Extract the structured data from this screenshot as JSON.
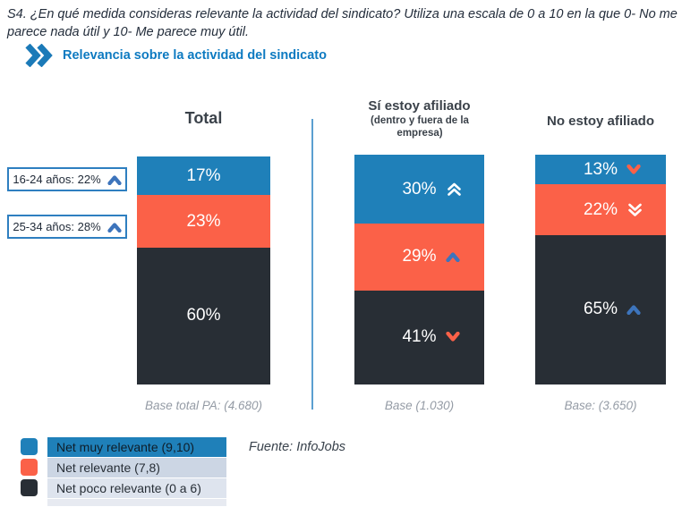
{
  "question": "S4. ¿En qué medida consideras relevante la actividad del sindicato? Utiliza una escala de 0 a 10 en la que 0- No me parece nada útil y 10- Me parece muy útil.",
  "subtitle": "Relevancia sobre la actividad del sindicato",
  "callouts": [
    {
      "label": "16-24 años: 22%",
      "arrow": "up-blue"
    },
    {
      "label": "25-34 años: 28%",
      "arrow": "up-blue"
    }
  ],
  "columns": [
    {
      "title": "Total",
      "subtitle": "",
      "base": "Base total PA: (4.680)",
      "segments": [
        {
          "label": "17%",
          "value": 17,
          "arrow": null
        },
        {
          "label": "23%",
          "value": 23,
          "arrow": null
        },
        {
          "label": "60%",
          "value": 60,
          "arrow": null
        }
      ]
    },
    {
      "title": "Sí estoy afiliado",
      "subtitle": "(dentro y fuera de la empresa)",
      "base": "Base (1.030)",
      "segments": [
        {
          "label": "30%",
          "value": 30,
          "arrow": "double-up-white"
        },
        {
          "label": "29%",
          "value": 29,
          "arrow": "up-blue"
        },
        {
          "label": "41%",
          "value": 41,
          "arrow": "down-orange"
        }
      ]
    },
    {
      "title": "No estoy afiliado",
      "subtitle": "",
      "base": "Base: (3.650)",
      "segments": [
        {
          "label": "13%",
          "value": 13,
          "arrow": "down-orange"
        },
        {
          "label": "22%",
          "value": 22,
          "arrow": "double-down-white"
        },
        {
          "label": "65%",
          "value": 65,
          "arrow": "up-blue"
        }
      ]
    }
  ],
  "legend": [
    {
      "label": "Net muy relevante (9,10)",
      "color": "#1f80b9"
    },
    {
      "label": "Net relevante (7,8)",
      "color": "#fb6148"
    },
    {
      "label": "Net poco relevante (0 a 6)",
      "color": "#282e35"
    }
  ],
  "fuente": "Fuente: InfoJobs",
  "colors": {
    "accent_blue": "#1b7ab8",
    "subtitle_blue": "#0d7ac1",
    "arrow_blue": "#3d74bc",
    "arrow_orange": "#fb6148",
    "arrow_white": "#ffffff",
    "divider": "#5b9fd0",
    "callout_border": "#2e7fc0",
    "legend_row1_bg": "#1f80b9",
    "legend_row2_bg": "#ccd6e4",
    "legend_row3_bg": "#dee4ee"
  },
  "chart_data": {
    "type": "bar",
    "stacked": true,
    "unit": "percent",
    "title": "Relevancia sobre la actividad del sindicato",
    "categories": [
      "Total",
      "Sí estoy afiliado (dentro y fuera de la empresa)",
      "No estoy afiliado"
    ],
    "series": [
      {
        "name": "Net muy relevante (9,10)",
        "color": "#1f80b9",
        "values": [
          17,
          30,
          13
        ]
      },
      {
        "name": "Net relevante (7,8)",
        "color": "#fb6148",
        "values": [
          23,
          29,
          22
        ]
      },
      {
        "name": "Net poco relevante (0 a 6)",
        "color": "#282e35",
        "values": [
          60,
          41,
          65
        ]
      }
    ],
    "bases": [
      "Base total PA: (4.680)",
      "Base (1.030)",
      "Base: (3.650)"
    ],
    "significance_markers": {
      "Sí estoy afiliado": {
        "Net muy relevante (9,10)": "up-strong",
        "Net relevante (7,8)": "up",
        "Net poco relevante (0 a 6)": "down"
      },
      "No estoy afiliado": {
        "Net muy relevante (9,10)": "down",
        "Net relevante (7,8)": "down-strong",
        "Net poco relevante (0 a 6)": "up"
      }
    },
    "annotations": [
      "16-24 años: 22% (up)",
      "25-34 años: 28% (up)"
    ],
    "legend_position": "bottom-left",
    "source": "Fuente: InfoJobs"
  }
}
